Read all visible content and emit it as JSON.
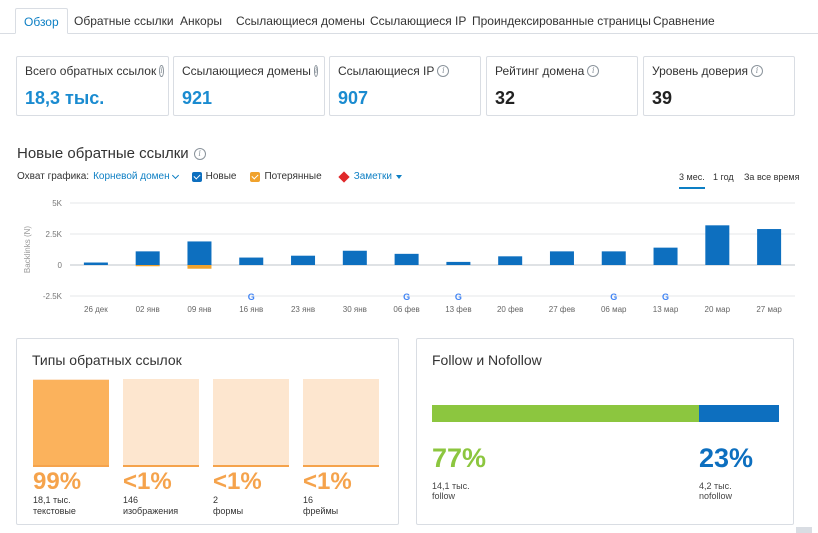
{
  "tabs": [
    {
      "label": "Обзор",
      "active": true
    },
    {
      "label": "Обратные ссылки"
    },
    {
      "label": "Анкоры"
    },
    {
      "label": "Ссылающиеся домены"
    },
    {
      "label": "Ссылающиеся IP"
    },
    {
      "label": "Проиндексированные страницы"
    },
    {
      "label": "Сравнение"
    }
  ],
  "kpis": [
    {
      "label": "Всего обратных ссылок",
      "value": "18,3 тыс.",
      "value_color": "#1a8bd0"
    },
    {
      "label": "Ссылающиеся домены",
      "value": "921",
      "value_color": "#1a8bd0"
    },
    {
      "label": "Ссылающиеся IP",
      "value": "907",
      "value_color": "#1a8bd0"
    },
    {
      "label": "Рейтинг домена",
      "value": "32",
      "value_color": "#222222"
    },
    {
      "label": "Уровень доверия",
      "value": "39",
      "value_color": "#222222"
    }
  ],
  "new_backlinks": {
    "title": "Новые обратные ссылки",
    "scope_label": "Охват графика:",
    "scope_value": "Корневой домен",
    "legend_new": "Новые",
    "legend_lost": "Потерянные",
    "notes": "Заметки",
    "periods": [
      {
        "label": "3 мес.",
        "active": true
      },
      {
        "label": "1 год"
      },
      {
        "label": "За все время"
      }
    ]
  },
  "chart_data": {
    "type": "bar",
    "ylabel": "Backlinks (N)",
    "yticks": [
      "5K",
      "2.5K",
      "0",
      "-2.5K"
    ],
    "ylim": [
      -2500,
      5000
    ],
    "grid": true,
    "categories": [
      "26 дек",
      "02 янв",
      "09 янв",
      "16 янв",
      "23 янв",
      "30 янв",
      "06 фев",
      "13 фев",
      "20 фев",
      "27 фев",
      "06 мар",
      "13 мар",
      "20 мар",
      "27 мар"
    ],
    "series": [
      {
        "name": "Новые",
        "color": "#0d6fbf",
        "values": [
          200,
          1100,
          1900,
          600,
          750,
          1150,
          900,
          250,
          700,
          1100,
          1100,
          1400,
          3200,
          2900
        ]
      },
      {
        "name": "Потерянные",
        "color": "#f0a22c",
        "values": [
          0,
          -100,
          -300,
          0,
          0,
          0,
          0,
          0,
          0,
          0,
          0,
          0,
          0,
          0
        ]
      }
    ],
    "google_markers": [
      "16 янв",
      "06 фев",
      "13 фев",
      "06 мар",
      "13 мар"
    ]
  },
  "types": {
    "title": "Типы обратных ссылок",
    "items": [
      {
        "pct": "99%",
        "count": "18,1 тыс.",
        "label": "текстовые",
        "fill": 0.99
      },
      {
        "pct": "<1%",
        "count": "146",
        "label": "изображения",
        "fill": 0
      },
      {
        "pct": "<1%",
        "count": "2",
        "label": "формы",
        "fill": 0
      },
      {
        "pct": "<1%",
        "count": "16",
        "label": "фреймы",
        "fill": 0
      }
    ]
  },
  "follow": {
    "title": "Follow и Nofollow",
    "follow_pct": "77%",
    "follow_count": "14,1 тыс.",
    "follow_label": "follow",
    "nofollow_pct": "23%",
    "nofollow_count": "4,2 тыс.",
    "nofollow_label": "nofollow",
    "follow_share": 0.77,
    "follow_color": "#8cc63f",
    "nofollow_color": "#0d6fbf"
  }
}
